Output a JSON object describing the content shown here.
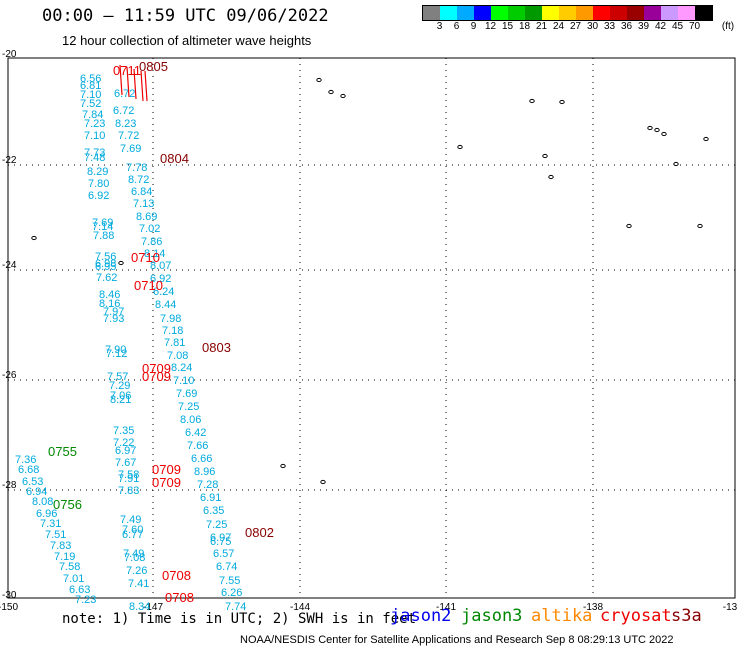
{
  "title": "00:00 – 11:59 UTC 09/06/2022",
  "subtitle": "12 hour collection of altimeter wave heights",
  "colorbar": {
    "colors": [
      "#808080",
      "#00ffff",
      "#00aaff",
      "#0000ff",
      "#00ff00",
      "#00cc00",
      "#009900",
      "#ffff00",
      "#ffcc00",
      "#ff9900",
      "#ff0000",
      "#cc0000",
      "#990000",
      "#990099",
      "#cc99ff",
      "#ff99ff",
      "#000000"
    ],
    "labels": [
      "3",
      "6",
      "9",
      "12",
      "15",
      "18",
      "21",
      "24",
      "27",
      "30",
      "33",
      "36",
      "39",
      "42",
      "45",
      "70"
    ],
    "unit": "(ft)"
  },
  "axes": {
    "lon_ticks": [
      "-150",
      "-147",
      "-144",
      "-141",
      "-138",
      "-13"
    ],
    "lat_ticks": [
      "-20",
      "-22",
      "-24",
      "-26",
      "-28",
      "-30"
    ]
  },
  "colors": {
    "jason2": "#0000ee",
    "jason3": "#008800",
    "altika": "#ff8800",
    "cryosat": "#ee0000",
    "s3a": "#880000",
    "swh": "#00aadd"
  },
  "swh_labels": [
    "6.56",
    "6.81",
    "7.10",
    "7.52",
    "7.84",
    "7.23",
    "7.10",
    "6.72",
    "6.72",
    "8.23",
    "7.72",
    "7.69",
    "7.73",
    "7.48",
    "7.78",
    "8.29",
    "8.72",
    "7.80",
    "6.92",
    "6.84",
    "7.13",
    "8.69",
    "7.02",
    "7.69",
    "7.14",
    "7.88",
    "7.86",
    "8.14",
    "7.56",
    "6.98",
    "6.95",
    "7.62",
    "8.07",
    "6.92",
    "8.46",
    "8.16",
    "7.97",
    "7.93",
    "6.24",
    "8.44",
    "7.98",
    "7.18",
    "7.81",
    "7.08",
    "7.90",
    "7.12",
    "8.24",
    "7.57",
    "7.10",
    "7.29",
    "7.69",
    "7.06",
    "8.21",
    "7.25",
    "8.06",
    "6.42",
    "7.35",
    "7.22",
    "6.97",
    "7.66",
    "7.67",
    "6.66",
    "7.36",
    "6.68",
    "6.53",
    "6.94",
    "8.96",
    "7.58",
    "7.91",
    "7.28",
    "7.83",
    "6.91",
    "8.08",
    "6.96",
    "6.35",
    "7.31",
    "7.49",
    "7.25",
    "7.60",
    "6.77",
    "7.51",
    "6.97",
    "6.75",
    "7.83",
    "7.49",
    "6.57",
    "7.19",
    "7.08",
    "7.26",
    "7.58",
    "6.74",
    "7.01",
    "7.55",
    "7.41",
    "6.63",
    "6.26",
    "7.23",
    "8.34",
    "7.74"
  ],
  "pass_labels": [
    {
      "text": "0805",
      "sat": "s3a"
    },
    {
      "text": "0711",
      "sat": "cryosat"
    },
    {
      "text": "0804",
      "sat": "s3a"
    },
    {
      "text": "0710",
      "sat": "cryosat"
    },
    {
      "text": "0710",
      "sat": "cryosat"
    },
    {
      "text": "0803",
      "sat": "s3a"
    },
    {
      "text": "0709",
      "sat": "cryosat"
    },
    {
      "text": "0709",
      "sat": "cryosat"
    },
    {
      "text": "0755",
      "sat": "jason3"
    },
    {
      "text": "0709",
      "sat": "cryosat"
    },
    {
      "text": "0709",
      "sat": "cryosat"
    },
    {
      "text": "0756",
      "sat": "jason3"
    },
    {
      "text": "0802",
      "sat": "s3a"
    },
    {
      "text": "0708",
      "sat": "cryosat"
    },
    {
      "text": "0708",
      "sat": "cryosat"
    }
  ],
  "note": "note: 1) Time is in UTC; 2) SWH is in feet",
  "satellites": [
    {
      "name": "jason2",
      "key": "jason2"
    },
    {
      "name": "jason3",
      "key": "jason3"
    },
    {
      "name": "altika",
      "key": "altika"
    },
    {
      "name": "cryosat",
      "key": "cryosat"
    },
    {
      "name": "s3a",
      "key": "s3a"
    }
  ],
  "footer": "NOAA/NESDIS Center for Satellite Applications and Research   Sep  8 08:29:13 UTC 2022"
}
